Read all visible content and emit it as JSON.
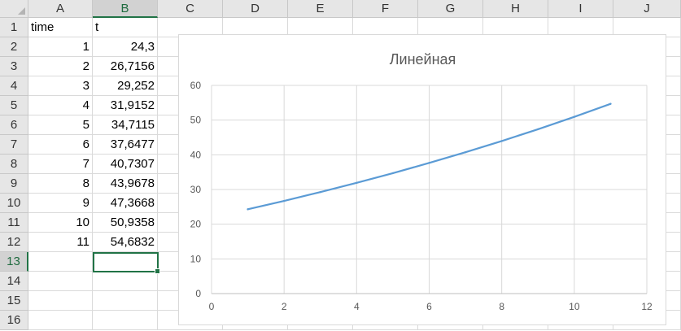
{
  "sheet": {
    "columns": [
      "A",
      "B",
      "C",
      "D",
      "E",
      "F",
      "G",
      "H",
      "I",
      "J"
    ],
    "rows": [
      "1",
      "2",
      "3",
      "4",
      "5",
      "6",
      "7",
      "8",
      "9",
      "10",
      "11",
      "12",
      "13",
      "14",
      "15",
      "16"
    ],
    "selected_column": "B",
    "selected_row": "13",
    "headers": {
      "a1": "time",
      "b1": "t"
    },
    "values": [
      {
        "a": "1",
        "b": "24,3"
      },
      {
        "a": "2",
        "b": "26,7156"
      },
      {
        "a": "3",
        "b": "29,252"
      },
      {
        "a": "4",
        "b": "31,9152"
      },
      {
        "a": "5",
        "b": "34,7115"
      },
      {
        "a": "6",
        "b": "37,6477"
      },
      {
        "a": "7",
        "b": "40,7307"
      },
      {
        "a": "8",
        "b": "43,9678"
      },
      {
        "a": "9",
        "b": "47,3668"
      },
      {
        "a": "10",
        "b": "50,9358"
      },
      {
        "a": "11",
        "b": "54,6832"
      }
    ]
  },
  "chart_data": {
    "type": "line",
    "title": "Линейная",
    "x": [
      1,
      2,
      3,
      4,
      5,
      6,
      7,
      8,
      9,
      10,
      11
    ],
    "series": [
      {
        "values": [
          24.3,
          26.7156,
          29.252,
          31.9152,
          34.7115,
          37.6477,
          40.7307,
          43.9678,
          47.3668,
          50.9358,
          54.6832
        ],
        "color": "#5b9bd5"
      }
    ],
    "xlim": [
      0,
      12
    ],
    "ylim": [
      0,
      60
    ],
    "xticks": [
      "0",
      "2",
      "4",
      "6",
      "8",
      "10",
      "12"
    ],
    "yticks": [
      "0",
      "10",
      "20",
      "30",
      "40",
      "50",
      "60"
    ],
    "grid": true,
    "legend": "none"
  }
}
